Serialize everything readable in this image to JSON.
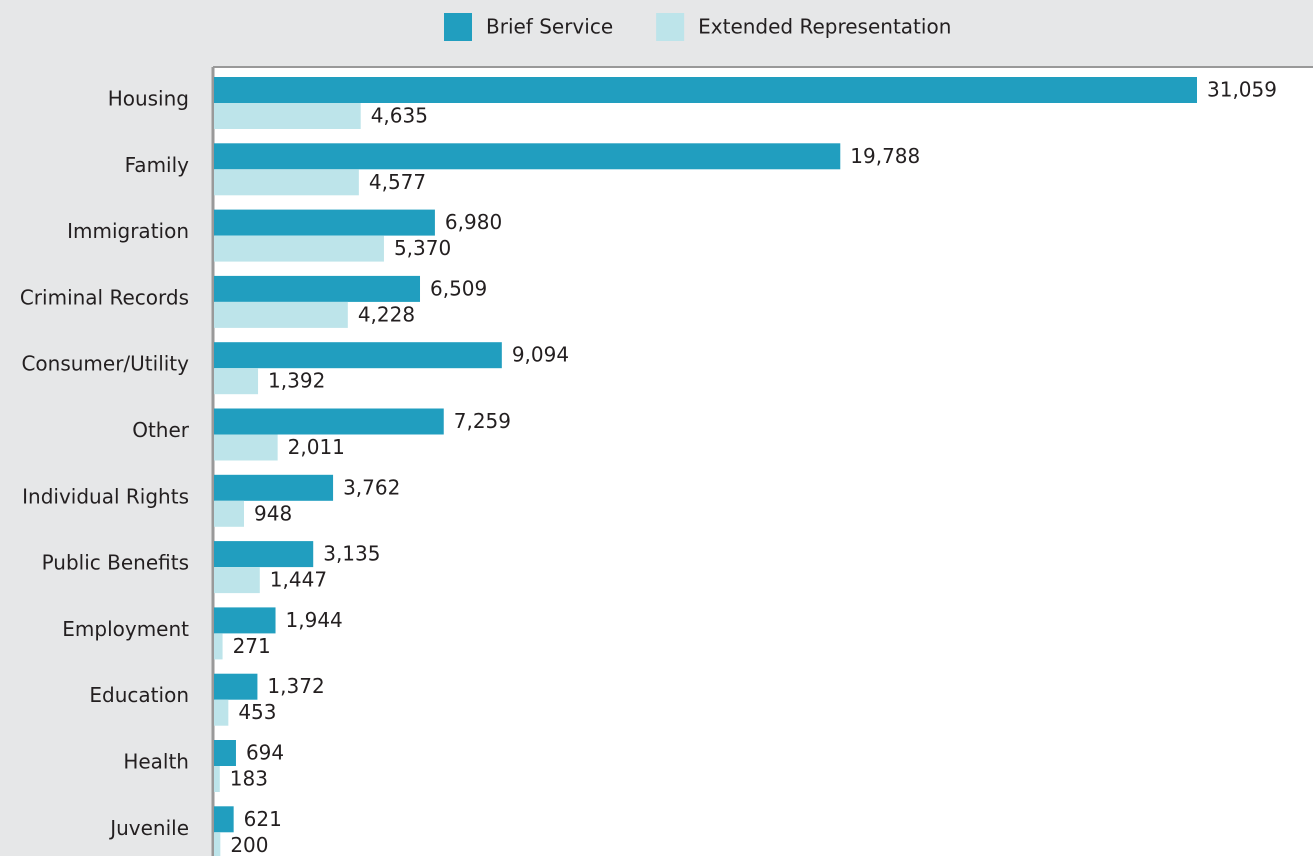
{
  "chart_data": {
    "type": "bar",
    "orientation": "horizontal",
    "categories": [
      "Housing",
      "Family",
      "Immigration",
      "Criminal Records",
      "Consumer/Utility",
      "Other",
      "Individual Rights",
      "Public Benefits",
      "Employment",
      "Education",
      "Health",
      "Juvenile"
    ],
    "series": [
      {
        "name": "Brief Service",
        "color": "#219ebf",
        "values": [
          31059,
          19788,
          6980,
          6509,
          9094,
          7259,
          3762,
          3135,
          1944,
          1372,
          694,
          621
        ],
        "value_labels": [
          "31,059",
          "19,788",
          "6,980",
          "6,509",
          "9,094",
          "7,259",
          "3,762",
          "3,135",
          "1,944",
          "1,372",
          "694",
          "621"
        ]
      },
      {
        "name": "Extended Representation",
        "color": "#bde4ea",
        "values": [
          4635,
          4577,
          5370,
          4228,
          1392,
          2011,
          948,
          1447,
          271,
          453,
          183,
          200
        ],
        "value_labels": [
          "4,635",
          "4,577",
          "5,370",
          "4,228",
          "1,392",
          "2,011",
          "948",
          "1,447",
          "271",
          "453",
          "183",
          "200"
        ]
      }
    ],
    "legend": "top"
  }
}
